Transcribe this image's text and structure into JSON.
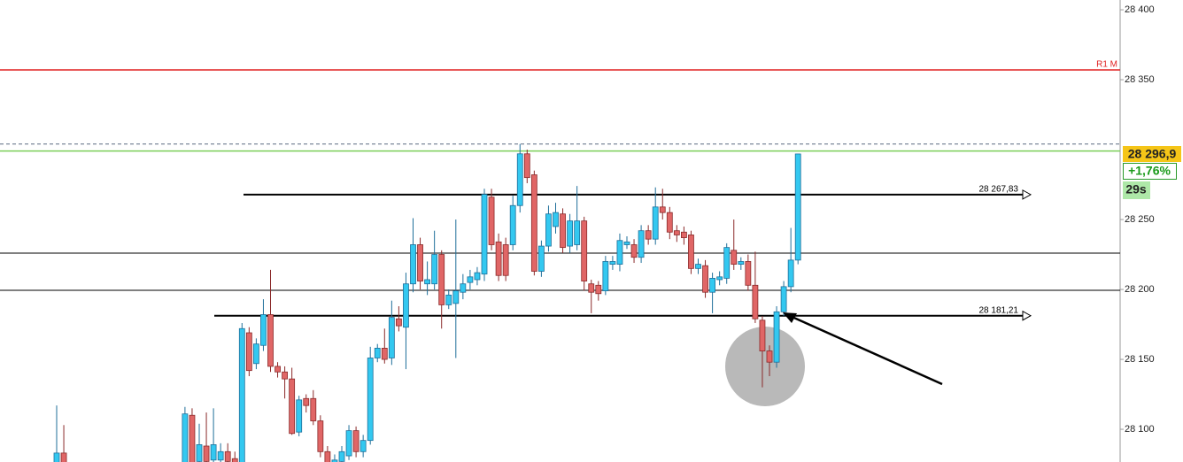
{
  "chart_data": {
    "type": "candlestick",
    "open": [
      28070,
      28083,
      null,
      null,
      null,
      null,
      null,
      null,
      null,
      null,
      null,
      null,
      null,
      null,
      null,
      null,
      null,
      null,
      28070,
      28110,
      28077,
      28088,
      28078,
      28078,
      28084,
      28079,
      28070,
      28169,
      28147,
      28160,
      28182,
      28145,
      28141,
      28136,
      28098,
      28122,
      28122,
      28106,
      28084,
      28072,
      28077,
      28081,
      28099,
      28084,
      28092,
      28151,
      28158,
      28151,
      28179,
      28173,
      28204,
      28232,
      28204,
      28204,
      28225,
      28189,
      28190,
      28198,
      28205,
      28207,
      28211,
      28266,
      28234,
      28232,
      28232,
      28260,
      28297,
      28282,
      28213,
      28231,
      28245,
      28254,
      28231,
      28232,
      28249,
      28204,
      28203,
      28199,
      28218,
      28218,
      28232,
      28232,
      28223,
      28242,
      28236,
      28259,
      28255,
      28242,
      28241,
      28239,
      28215,
      28217,
      28198,
      28207,
      28208,
      28228,
      28218,
      28220,
      28203,
      28178,
      28156,
      28148,
      28184,
      28202,
      28221
    ],
    "high": [
      28117,
      28103,
      null,
      null,
      null,
      null,
      null,
      null,
      null,
      null,
      null,
      null,
      null,
      null,
      null,
      null,
      null,
      null,
      28116,
      28115,
      28104,
      28112,
      28115,
      28090,
      28090,
      28084,
      28176,
      28173,
      28165,
      28193,
      28214,
      28148,
      28145,
      28144,
      28124,
      28125,
      28128,
      28110,
      28088,
      28082,
      28088,
      28103,
      28102,
      28096,
      28159,
      28161,
      28172,
      28192,
      28188,
      28212,
      28251,
      28237,
      28220,
      28242,
      28228,
      28200,
      28250,
      28211,
      28214,
      28216,
      28272,
      28272,
      28240,
      28237,
      28267,
      28304,
      28300,
      28285,
      28235,
      28260,
      28262,
      28258,
      28254,
      28274,
      28252,
      28207,
      28206,
      28224,
      28224,
      28240,
      28238,
      28236,
      28246,
      28246,
      28273,
      28272,
      28259,
      28246,
      28245,
      28242,
      28222,
      28221,
      28212,
      28213,
      28233,
      28250,
      28223,
      28225,
      28227,
      28181,
      28160,
      28188,
      28206,
      28244,
      28297
    ],
    "low": [
      28065,
      28065,
      null,
      null,
      null,
      null,
      null,
      null,
      null,
      null,
      null,
      null,
      null,
      null,
      null,
      null,
      null,
      null,
      28065,
      28065,
      28072,
      28072,
      28074,
      28074,
      28072,
      28070,
      28065,
      28138,
      28143,
      28156,
      28141,
      28137,
      28122,
      28096,
      28095,
      28112,
      28103,
      28080,
      28070,
      28068,
      28074,
      28078,
      28080,
      28080,
      28089,
      28148,
      28147,
      28146,
      28170,
      28143,
      28198,
      28200,
      28196,
      28200,
      28172,
      28186,
      28151,
      28193,
      28200,
      28203,
      28206,
      28228,
      28206,
      28206,
      28228,
      28255,
      28276,
      28210,
      28209,
      28227,
      28240,
      28226,
      28226,
      28228,
      28199,
      28183,
      28192,
      28196,
      28214,
      28213,
      28229,
      28219,
      28219,
      28232,
      28232,
      28250,
      28236,
      28234,
      28232,
      28211,
      28211,
      28194,
      28183,
      28203,
      28204,
      28214,
      28214,
      28199,
      28176,
      28130,
      28138,
      28144,
      28181,
      28198,
      28218
    ],
    "close": [
      28083,
      28070,
      null,
      null,
      null,
      null,
      null,
      null,
      null,
      null,
      null,
      null,
      null,
      null,
      null,
      null,
      null,
      null,
      28111,
      28070,
      28089,
      28077,
      28089,
      28084,
      28077,
      28074,
      28172,
      28142,
      28161,
      28182,
      28145,
      28141,
      28136,
      28097,
      28121,
      28117,
      28106,
      28084,
      28076,
      28078,
      28084,
      28099,
      28084,
      28092,
      28151,
      28158,
      28150,
      28180,
      28174,
      28204,
      28232,
      28206,
      28207,
      28225,
      28189,
      28196,
      28199,
      28204,
      28209,
      28212,
      28268,
      28232,
      28210,
      28210,
      28260,
      28297,
      28280,
      28213,
      28231,
      28254,
      28255,
      28230,
      28249,
      28249,
      28206,
      28198,
      28197,
      28220,
      28220,
      28235,
      28234,
      28223,
      28242,
      28236,
      28259,
      28255,
      28241,
      28239,
      28237,
      28215,
      28218,
      28198,
      28208,
      28209,
      28230,
      28218,
      28220,
      28203,
      28179,
      28156,
      28148,
      28184,
      28202,
      28221,
      28296.9
    ],
    "up_color": "#33c8f0",
    "down_color": "#e06666",
    "ylim": [
      28076.6,
      28407
    ],
    "yticks": [
      {
        "value": 28400,
        "label": "28 400"
      },
      {
        "value": 28350,
        "label": "28 350"
      },
      {
        "value": 28250,
        "label": "28 250"
      },
      {
        "value": 28200,
        "label": "28 200"
      },
      {
        "value": 28150,
        "label": "28 150"
      },
      {
        "value": 28100,
        "label": "28 100"
      }
    ],
    "levels": [
      {
        "value": 28357,
        "label": "R1 M",
        "color": "#e02020"
      },
      {
        "value": 28267.83,
        "label": "28 267,83",
        "color": "#000000"
      },
      {
        "value": 28181.21,
        "label": "28 181,21",
        "color": "#000000"
      },
      {
        "value": 28226,
        "color": "#000000"
      },
      {
        "value": 28199.4,
        "color": "#000000"
      },
      {
        "value": 28304,
        "color": "#5a6a80"
      },
      {
        "value": 28299,
        "color": "#7ccf5a"
      }
    ],
    "last_price": {
      "value": 28296.9,
      "label": "28 296,9"
    },
    "change": "+1,76%",
    "timer": "29s"
  }
}
